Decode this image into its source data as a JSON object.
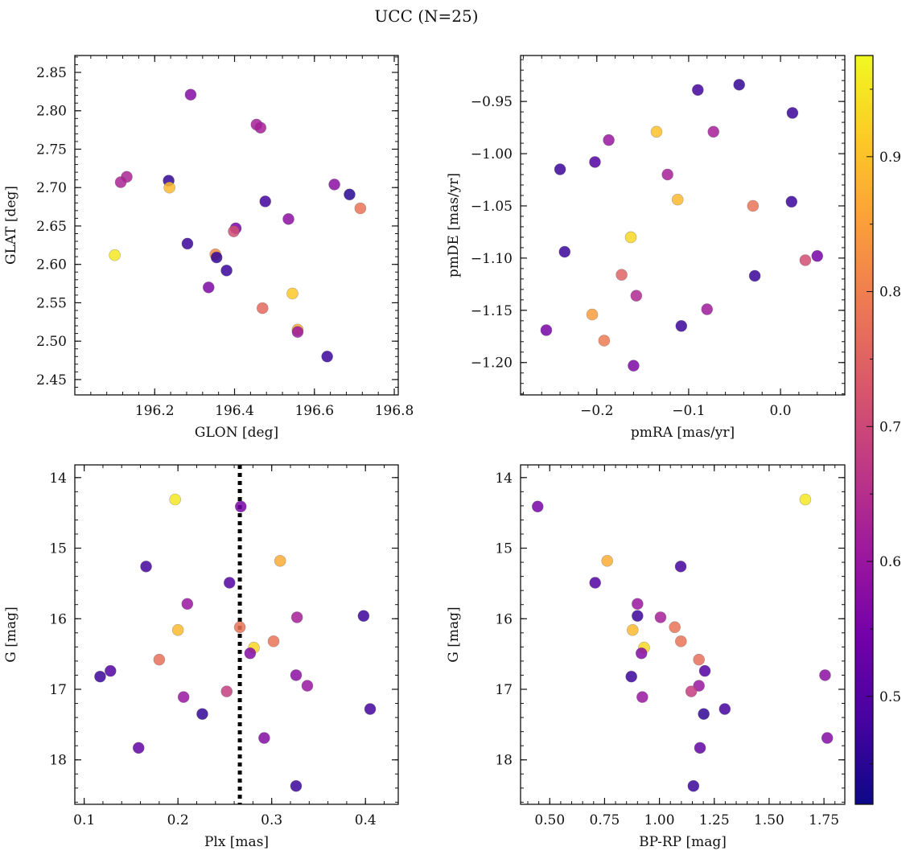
{
  "figure": {
    "title": "UCC (N=25)"
  },
  "colorbar": {
    "range": [
      0.42,
      0.975
    ],
    "ticks": [
      0.5,
      0.6,
      0.7,
      0.8,
      0.9
    ],
    "tick_labels": [
      "0.5",
      "0.6",
      "0.7",
      "0.8",
      "0.9"
    ],
    "colormap": "plasma",
    "stops": [
      "#0d0887",
      "#46039f",
      "#7201a8",
      "#9c179e",
      "#bd3786",
      "#d8576b",
      "#ed7953",
      "#fb9f3a",
      "#fdca26",
      "#f0f921"
    ]
  },
  "chart_data": [
    {
      "type": "scatter",
      "xlabel": "GLON [deg]",
      "ylabel": "GLAT [deg]",
      "xlim": [
        196.0,
        196.81
      ],
      "ylim": [
        2.43,
        2.872
      ],
      "xticks": [
        196.2,
        196.4,
        196.6,
        196.8
      ],
      "xtick_labels": [
        "196.2",
        "196.4",
        "196.6",
        "196.8"
      ],
      "yticks": [
        2.45,
        2.5,
        2.55,
        2.6,
        2.65,
        2.7,
        2.75,
        2.8,
        2.85
      ],
      "ytick_labels": [
        "2.45",
        "2.50",
        "2.55",
        "2.60",
        "2.65",
        "2.70",
        "2.75",
        "2.80",
        "2.85"
      ],
      "y_inverted": false,
      "points": [
        {
          "x": 196.29,
          "y": 2.821,
          "c": 0.57
        },
        {
          "x": 196.455,
          "y": 2.782,
          "c": 0.62
        },
        {
          "x": 196.465,
          "y": 2.778,
          "c": 0.62
        },
        {
          "x": 196.13,
          "y": 2.714,
          "c": 0.63
        },
        {
          "x": 196.115,
          "y": 2.707,
          "c": 0.63
        },
        {
          "x": 196.235,
          "y": 2.709,
          "c": 0.46
        },
        {
          "x": 196.237,
          "y": 2.7,
          "c": 0.89
        },
        {
          "x": 196.65,
          "y": 2.704,
          "c": 0.58
        },
        {
          "x": 196.688,
          "y": 2.691,
          "c": 0.45
        },
        {
          "x": 196.477,
          "y": 2.682,
          "c": 0.48
        },
        {
          "x": 196.715,
          "y": 2.673,
          "c": 0.78
        },
        {
          "x": 196.535,
          "y": 2.659,
          "c": 0.58
        },
        {
          "x": 196.403,
          "y": 2.647,
          "c": 0.55
        },
        {
          "x": 196.398,
          "y": 2.643,
          "c": 0.71
        },
        {
          "x": 196.282,
          "y": 2.627,
          "c": 0.47
        },
        {
          "x": 196.1,
          "y": 2.612,
          "c": 0.95
        },
        {
          "x": 196.352,
          "y": 2.613,
          "c": 0.82
        },
        {
          "x": 196.355,
          "y": 2.609,
          "c": 0.46
        },
        {
          "x": 196.38,
          "y": 2.592,
          "c": 0.47
        },
        {
          "x": 196.335,
          "y": 2.57,
          "c": 0.56
        },
        {
          "x": 196.545,
          "y": 2.562,
          "c": 0.91
        },
        {
          "x": 196.47,
          "y": 2.543,
          "c": 0.76
        },
        {
          "x": 196.558,
          "y": 2.515,
          "c": 0.87
        },
        {
          "x": 196.558,
          "y": 2.512,
          "c": 0.6
        },
        {
          "x": 196.632,
          "y": 2.48,
          "c": 0.47
        }
      ]
    },
    {
      "type": "scatter",
      "xlabel": "pmRA [mas/yr]",
      "ylabel": "pmDE [mas/yr]",
      "xlim": [
        -0.283,
        0.07
      ],
      "ylim": [
        -1.231,
        -0.906
      ],
      "xticks": [
        -0.2,
        -0.1,
        0.0
      ],
      "xtick_labels": [
        "−0.2",
        "−0.1",
        "0.0"
      ],
      "yticks": [
        -1.2,
        -1.15,
        -1.1,
        -1.05,
        -1.0,
        -0.95
      ],
      "ytick_labels": [
        "−1.20",
        "−1.15",
        "−1.10",
        "−1.05",
        "−1.00",
        "−0.95"
      ],
      "y_inverted": false,
      "points": [
        {
          "x": -0.045,
          "y": -0.934,
          "c": 0.46
        },
        {
          "x": -0.09,
          "y": -0.939,
          "c": 0.48
        },
        {
          "x": 0.013,
          "y": -0.961,
          "c": 0.47
        },
        {
          "x": -0.135,
          "y": -0.979,
          "c": 0.9
        },
        {
          "x": -0.073,
          "y": -0.979,
          "c": 0.62
        },
        {
          "x": -0.187,
          "y": -0.987,
          "c": 0.6
        },
        {
          "x": -0.202,
          "y": -1.008,
          "c": 0.5
        },
        {
          "x": -0.24,
          "y": -1.015,
          "c": 0.47
        },
        {
          "x": -0.123,
          "y": -1.02,
          "c": 0.62
        },
        {
          "x": -0.112,
          "y": -1.044,
          "c": 0.89
        },
        {
          "x": 0.012,
          "y": -1.046,
          "c": 0.47
        },
        {
          "x": -0.03,
          "y": -1.05,
          "c": 0.78
        },
        {
          "x": -0.163,
          "y": -1.08,
          "c": 0.93
        },
        {
          "x": -0.235,
          "y": -1.094,
          "c": 0.47
        },
        {
          "x": 0.04,
          "y": -1.098,
          "c": 0.55
        },
        {
          "x": 0.027,
          "y": -1.102,
          "c": 0.71
        },
        {
          "x": -0.173,
          "y": -1.116,
          "c": 0.75
        },
        {
          "x": -0.028,
          "y": -1.117,
          "c": 0.47
        },
        {
          "x": -0.157,
          "y": -1.136,
          "c": 0.64
        },
        {
          "x": -0.08,
          "y": -1.149,
          "c": 0.61
        },
        {
          "x": -0.205,
          "y": -1.154,
          "c": 0.85
        },
        {
          "x": -0.108,
          "y": -1.165,
          "c": 0.47
        },
        {
          "x": -0.255,
          "y": -1.169,
          "c": 0.55
        },
        {
          "x": -0.192,
          "y": -1.179,
          "c": 0.79
        },
        {
          "x": -0.16,
          "y": -1.203,
          "c": 0.56
        }
      ]
    },
    {
      "type": "scatter",
      "xlabel": "Plx [mas]",
      "ylabel": "G [mag]",
      "xlim": [
        0.09,
        0.435
      ],
      "ylim": [
        13.82,
        18.63
      ],
      "xticks": [
        0.1,
        0.2,
        0.3,
        0.4
      ],
      "xtick_labels": [
        "0.1",
        "0.2",
        "0.3",
        "0.4"
      ],
      "yticks": [
        14,
        15,
        16,
        17,
        18
      ],
      "ytick_labels": [
        "14",
        "15",
        "16",
        "17",
        "18"
      ],
      "y_inverted": true,
      "vline": 0.266,
      "points": [
        {
          "x": 0.197,
          "y": 14.31,
          "c": 0.95
        },
        {
          "x": 0.267,
          "y": 14.41,
          "c": 0.55
        },
        {
          "x": 0.309,
          "y": 15.18,
          "c": 0.87
        },
        {
          "x": 0.166,
          "y": 15.26,
          "c": 0.48
        },
        {
          "x": 0.255,
          "y": 15.49,
          "c": 0.5
        },
        {
          "x": 0.21,
          "y": 15.79,
          "c": 0.6
        },
        {
          "x": 0.398,
          "y": 15.96,
          "c": 0.47
        },
        {
          "x": 0.327,
          "y": 15.98,
          "c": 0.62
        },
        {
          "x": 0.266,
          "y": 16.12,
          "c": 0.78
        },
        {
          "x": 0.2,
          "y": 16.16,
          "c": 0.89
        },
        {
          "x": 0.302,
          "y": 16.32,
          "c": 0.78
        },
        {
          "x": 0.281,
          "y": 16.41,
          "c": 0.93
        },
        {
          "x": 0.277,
          "y": 16.49,
          "c": 0.57
        },
        {
          "x": 0.18,
          "y": 16.58,
          "c": 0.77
        },
        {
          "x": 0.128,
          "y": 16.74,
          "c": 0.5
        },
        {
          "x": 0.326,
          "y": 16.8,
          "c": 0.58
        },
        {
          "x": 0.117,
          "y": 16.82,
          "c": 0.47
        },
        {
          "x": 0.338,
          "y": 16.95,
          "c": 0.6
        },
        {
          "x": 0.252,
          "y": 17.03,
          "c": 0.68
        },
        {
          "x": 0.206,
          "y": 17.11,
          "c": 0.6
        },
        {
          "x": 0.405,
          "y": 17.28,
          "c": 0.48
        },
        {
          "x": 0.226,
          "y": 17.35,
          "c": 0.46
        },
        {
          "x": 0.292,
          "y": 17.69,
          "c": 0.57
        },
        {
          "x": 0.158,
          "y": 17.83,
          "c": 0.52
        },
        {
          "x": 0.326,
          "y": 18.37,
          "c": 0.47
        }
      ]
    },
    {
      "type": "scatter",
      "xlabel": "BP-RP [mag]",
      "ylabel": "G [mag]",
      "xlim": [
        0.367,
        1.845
      ],
      "ylim": [
        13.82,
        18.63
      ],
      "xticks": [
        0.5,
        0.75,
        1.0,
        1.25,
        1.5,
        1.75
      ],
      "xtick_labels": [
        "0.50",
        "0.75",
        "1.00",
        "1.25",
        "1.50",
        "1.75"
      ],
      "yticks": [
        14,
        15,
        16,
        17,
        18
      ],
      "ytick_labels": [
        "14",
        "15",
        "16",
        "17",
        "18"
      ],
      "y_inverted": true,
      "points": [
        {
          "x": 1.665,
          "y": 14.31,
          "c": 0.95
        },
        {
          "x": 0.445,
          "y": 14.41,
          "c": 0.55
        },
        {
          "x": 0.762,
          "y": 15.18,
          "c": 0.87
        },
        {
          "x": 1.097,
          "y": 15.26,
          "c": 0.48
        },
        {
          "x": 0.707,
          "y": 15.49,
          "c": 0.5
        },
        {
          "x": 0.9,
          "y": 15.79,
          "c": 0.6
        },
        {
          "x": 0.9,
          "y": 15.96,
          "c": 0.47
        },
        {
          "x": 1.005,
          "y": 15.98,
          "c": 0.62
        },
        {
          "x": 1.07,
          "y": 16.12,
          "c": 0.78
        },
        {
          "x": 0.878,
          "y": 16.16,
          "c": 0.89
        },
        {
          "x": 1.098,
          "y": 16.32,
          "c": 0.78
        },
        {
          "x": 0.93,
          "y": 16.41,
          "c": 0.93
        },
        {
          "x": 0.918,
          "y": 16.49,
          "c": 0.57
        },
        {
          "x": 1.18,
          "y": 16.58,
          "c": 0.77
        },
        {
          "x": 1.207,
          "y": 16.74,
          "c": 0.5
        },
        {
          "x": 1.755,
          "y": 16.8,
          "c": 0.58
        },
        {
          "x": 0.872,
          "y": 16.82,
          "c": 0.47
        },
        {
          "x": 1.18,
          "y": 16.95,
          "c": 0.6
        },
        {
          "x": 1.145,
          "y": 17.03,
          "c": 0.68
        },
        {
          "x": 0.922,
          "y": 17.11,
          "c": 0.6
        },
        {
          "x": 1.298,
          "y": 17.28,
          "c": 0.48
        },
        {
          "x": 1.202,
          "y": 17.35,
          "c": 0.46
        },
        {
          "x": 1.765,
          "y": 17.69,
          "c": 0.57
        },
        {
          "x": 1.185,
          "y": 17.83,
          "c": 0.52
        },
        {
          "x": 1.155,
          "y": 18.37,
          "c": 0.47
        }
      ]
    }
  ]
}
